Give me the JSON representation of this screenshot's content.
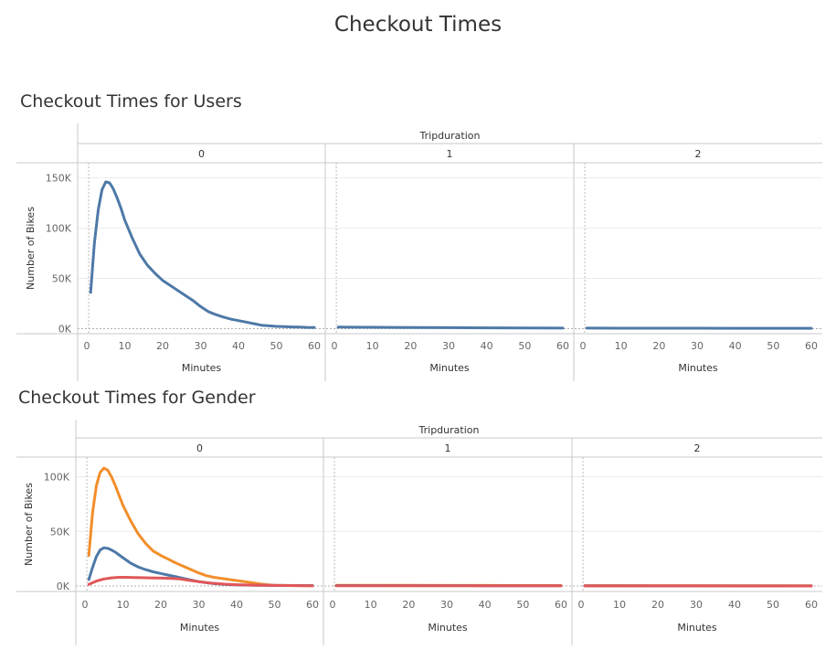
{
  "title": "Checkout Times",
  "chart_data": [
    {
      "id": "users",
      "type": "line",
      "title": "Checkout Times for Users",
      "facet_header": "Tripduration",
      "facets": [
        "0",
        "1",
        "2"
      ],
      "xlabel": "Minutes",
      "ylabel": "Number of Bikes",
      "xticks": [
        "0",
        "10",
        "20",
        "30",
        "40",
        "50",
        "60"
      ],
      "xlim": [
        0,
        60
      ],
      "ylim": [
        -5000,
        165000
      ],
      "yticks": [
        {
          "v": 0,
          "label": "0K"
        },
        {
          "v": 50000,
          "label": "50K"
        },
        {
          "v": 100000,
          "label": "100K"
        },
        {
          "v": 150000,
          "label": "150K"
        }
      ],
      "grid": true,
      "series": [
        {
          "color": "#4e79a7",
          "panels": [
            [
              [
                1,
                36000
              ],
              [
                2,
                85000
              ],
              [
                3,
                118000
              ],
              [
                4,
                138000
              ],
              [
                5,
                146000
              ],
              [
                6,
                145000
              ],
              [
                7,
                139000
              ],
              [
                8,
                130000
              ],
              [
                9,
                120000
              ],
              [
                10,
                108000
              ],
              [
                12,
                90000
              ],
              [
                14,
                74000
              ],
              [
                16,
                63000
              ],
              [
                18,
                55000
              ],
              [
                20,
                48000
              ],
              [
                22,
                43000
              ],
              [
                24,
                38000
              ],
              [
                26,
                33000
              ],
              [
                28,
                28000
              ],
              [
                30,
                22000
              ],
              [
                32,
                17000
              ],
              [
                34,
                14000
              ],
              [
                36,
                11500
              ],
              [
                38,
                9500
              ],
              [
                40,
                8000
              ],
              [
                42,
                6500
              ],
              [
                44,
                5000
              ],
              [
                46,
                3500
              ],
              [
                48,
                2800
              ],
              [
                50,
                2300
              ],
              [
                52,
                2000
              ],
              [
                54,
                1700
              ],
              [
                56,
                1500
              ],
              [
                58,
                1300
              ],
              [
                60,
                1200
              ]
            ],
            [
              [
                1,
                1500
              ],
              [
                10,
                1400
              ],
              [
                20,
                1200
              ],
              [
                30,
                1000
              ],
              [
                40,
                850
              ],
              [
                50,
                700
              ],
              [
                60,
                550
              ]
            ],
            [
              [
                1,
                500
              ],
              [
                10,
                480
              ],
              [
                20,
                450
              ],
              [
                30,
                420
              ],
              [
                40,
                400
              ],
              [
                50,
                380
              ],
              [
                60,
                360
              ]
            ]
          ]
        }
      ]
    },
    {
      "id": "gender",
      "type": "line",
      "title": "Checkout Times for Gender",
      "facet_header": "Tripduration",
      "facets": [
        "0",
        "1",
        "2"
      ],
      "xlabel": "Minutes",
      "ylabel": "Number of Bikes",
      "xticks": [
        "0",
        "10",
        "20",
        "30",
        "40",
        "50",
        "60"
      ],
      "xlim": [
        0,
        60
      ],
      "ylim": [
        -5000,
        118000
      ],
      "yticks": [
        {
          "v": 0,
          "label": "0K"
        },
        {
          "v": 50000,
          "label": "50K"
        },
        {
          "v": 100000,
          "label": "100K"
        }
      ],
      "grid": true,
      "series": [
        {
          "color": "#f28e2b",
          "panels": [
            [
              [
                1,
                28000
              ],
              [
                2,
                67000
              ],
              [
                3,
                92000
              ],
              [
                4,
                104000
              ],
              [
                5,
                108000
              ],
              [
                6,
                106000
              ],
              [
                7,
                100000
              ],
              [
                8,
                92000
              ],
              [
                9,
                83000
              ],
              [
                10,
                74000
              ],
              [
                12,
                60000
              ],
              [
                14,
                48000
              ],
              [
                16,
                39000
              ],
              [
                18,
                32000
              ],
              [
                20,
                28000
              ],
              [
                22,
                24500
              ],
              [
                24,
                21000
              ],
              [
                26,
                18000
              ],
              [
                28,
                15000
              ],
              [
                30,
                12000
              ],
              [
                32,
                9500
              ],
              [
                34,
                8000
              ],
              [
                36,
                7000
              ],
              [
                38,
                6000
              ],
              [
                40,
                5000
              ],
              [
                42,
                4000
              ],
              [
                44,
                3000
              ],
              [
                46,
                2000
              ],
              [
                48,
                1200
              ],
              [
                50,
                700
              ],
              [
                54,
                400
              ],
              [
                60,
                300
              ]
            ],
            [
              [
                1,
                700
              ],
              [
                20,
                600
              ],
              [
                40,
                500
              ],
              [
                60,
                450
              ]
            ],
            [
              [
                1,
                350
              ],
              [
                20,
                320
              ],
              [
                40,
                300
              ],
              [
                60,
                280
              ]
            ]
          ]
        },
        {
          "color": "#4e79a7",
          "panels": [
            [
              [
                1,
                6000
              ],
              [
                2,
                17000
              ],
              [
                3,
                27000
              ],
              [
                4,
                33000
              ],
              [
                5,
                35000
              ],
              [
                6,
                34500
              ],
              [
                7,
                33000
              ],
              [
                8,
                31000
              ],
              [
                9,
                28500
              ],
              [
                10,
                26000
              ],
              [
                12,
                21000
              ],
              [
                14,
                17500
              ],
              [
                16,
                15000
              ],
              [
                18,
                13000
              ],
              [
                20,
                11500
              ],
              [
                22,
                10000
              ],
              [
                24,
                8500
              ],
              [
                26,
                7000
              ],
              [
                28,
                5500
              ],
              [
                30,
                4000
              ],
              [
                32,
                3000
              ],
              [
                34,
                2200
              ],
              [
                36,
                1700
              ],
              [
                38,
                1300
              ],
              [
                40,
                1000
              ],
              [
                45,
                700
              ],
              [
                50,
                500
              ],
              [
                60,
                400
              ]
            ],
            [
              [
                1,
                400
              ],
              [
                20,
                350
              ],
              [
                40,
                300
              ],
              [
                60,
                250
              ]
            ],
            [
              [
                1,
                150
              ],
              [
                20,
                140
              ],
              [
                40,
                130
              ],
              [
                60,
                120
              ]
            ]
          ]
        },
        {
          "color": "#e15759",
          "panels": [
            [
              [
                1,
                1500
              ],
              [
                3,
                4500
              ],
              [
                5,
                6500
              ],
              [
                7,
                7500
              ],
              [
                9,
                8000
              ],
              [
                11,
                8000
              ],
              [
                13,
                7800
              ],
              [
                15,
                7600
              ],
              [
                17,
                7500
              ],
              [
                19,
                7400
              ],
              [
                21,
                7200
              ],
              [
                23,
                7000
              ],
              [
                25,
                6500
              ],
              [
                27,
                5500
              ],
              [
                29,
                4500
              ],
              [
                31,
                3500
              ],
              [
                33,
                2800
              ],
              [
                35,
                2200
              ],
              [
                37,
                1700
              ],
              [
                40,
                1200
              ],
              [
                45,
                800
              ],
              [
                50,
                500
              ],
              [
                60,
                300
              ]
            ],
            [
              [
                1,
                200
              ],
              [
                30,
                180
              ],
              [
                60,
                150
              ]
            ],
            [
              [
                1,
                80
              ],
              [
                30,
                70
              ],
              [
                60,
                60
              ]
            ]
          ]
        }
      ]
    }
  ]
}
